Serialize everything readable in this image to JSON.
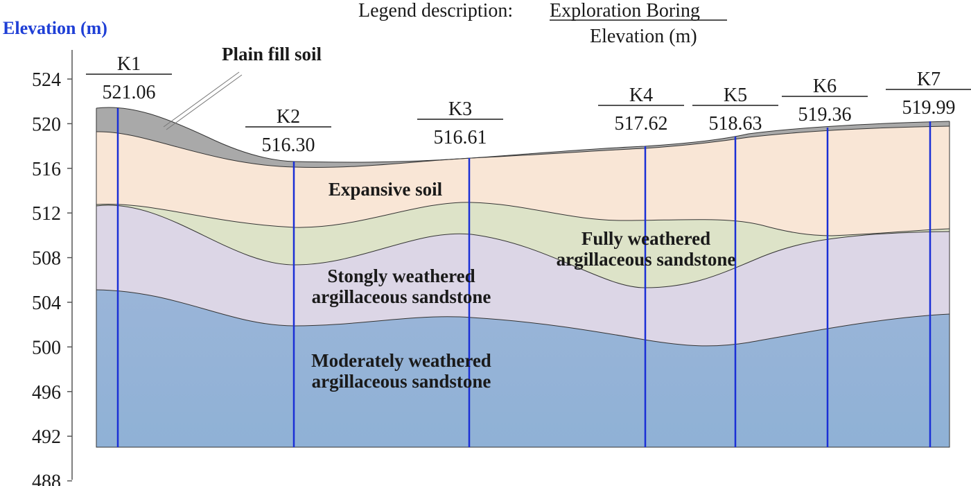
{
  "legend": {
    "prefix": "Legend description:",
    "link": "Exploration Boring",
    "sub": "Elevation (m)"
  },
  "axis": {
    "label": "Elevation (m)",
    "ticks": [
      524,
      520,
      516,
      512,
      508,
      504,
      500,
      496,
      492,
      488
    ]
  },
  "boreholes": [
    {
      "id": "K1",
      "elevation": "521.06"
    },
    {
      "id": "K2",
      "elevation": "516.30"
    },
    {
      "id": "K3",
      "elevation": "516.61"
    },
    {
      "id": "K4",
      "elevation": "517.62"
    },
    {
      "id": "K5",
      "elevation": "518.63"
    },
    {
      "id": "K6",
      "elevation": "519.36"
    },
    {
      "id": "K7",
      "elevation": "519.99"
    }
  ],
  "layers": {
    "fill": "Plain fill soil",
    "expansive": "Expansive soil",
    "fully": [
      "Fully weathered",
      "argillaceous sandstone"
    ],
    "strongly": [
      "Stongly weathered",
      "argillaceous sandstone"
    ],
    "moderately": [
      "Moderately weathered",
      "argillaceous sandstone"
    ]
  },
  "colors": {
    "fill": "#a9a9a9",
    "expansive": "#f9e6d6",
    "fully": "#dde3c8",
    "strongly": "#dcd6e6",
    "moderately": "#93b3d6",
    "borehole": "#1a2fd6",
    "axis_label": "#1f3fd6"
  }
}
